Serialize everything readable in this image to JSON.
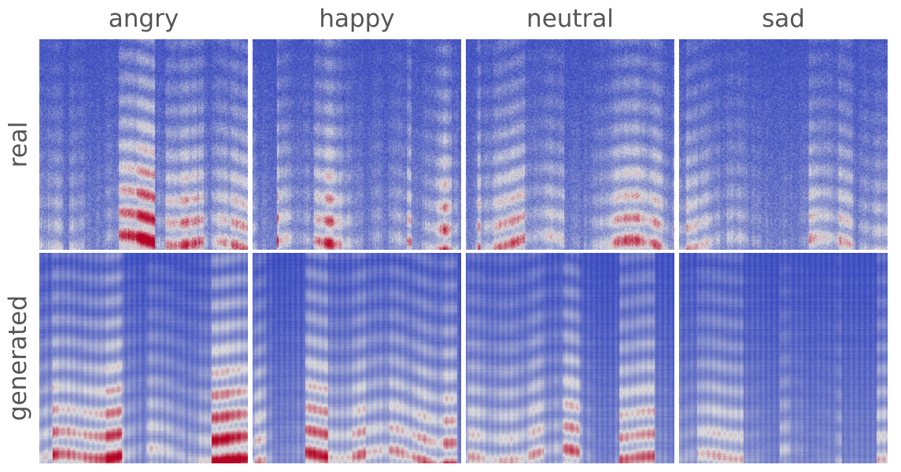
{
  "columns": [
    {
      "label": "angry"
    },
    {
      "label": "happy"
    },
    {
      "label": "neutral"
    },
    {
      "label": "sad"
    }
  ],
  "rows": [
    {
      "label": "real"
    },
    {
      "label": "generated"
    }
  ],
  "colors": {
    "low": "#3b4cc0",
    "mid": "#dddddd",
    "high": "#b40426"
  }
}
